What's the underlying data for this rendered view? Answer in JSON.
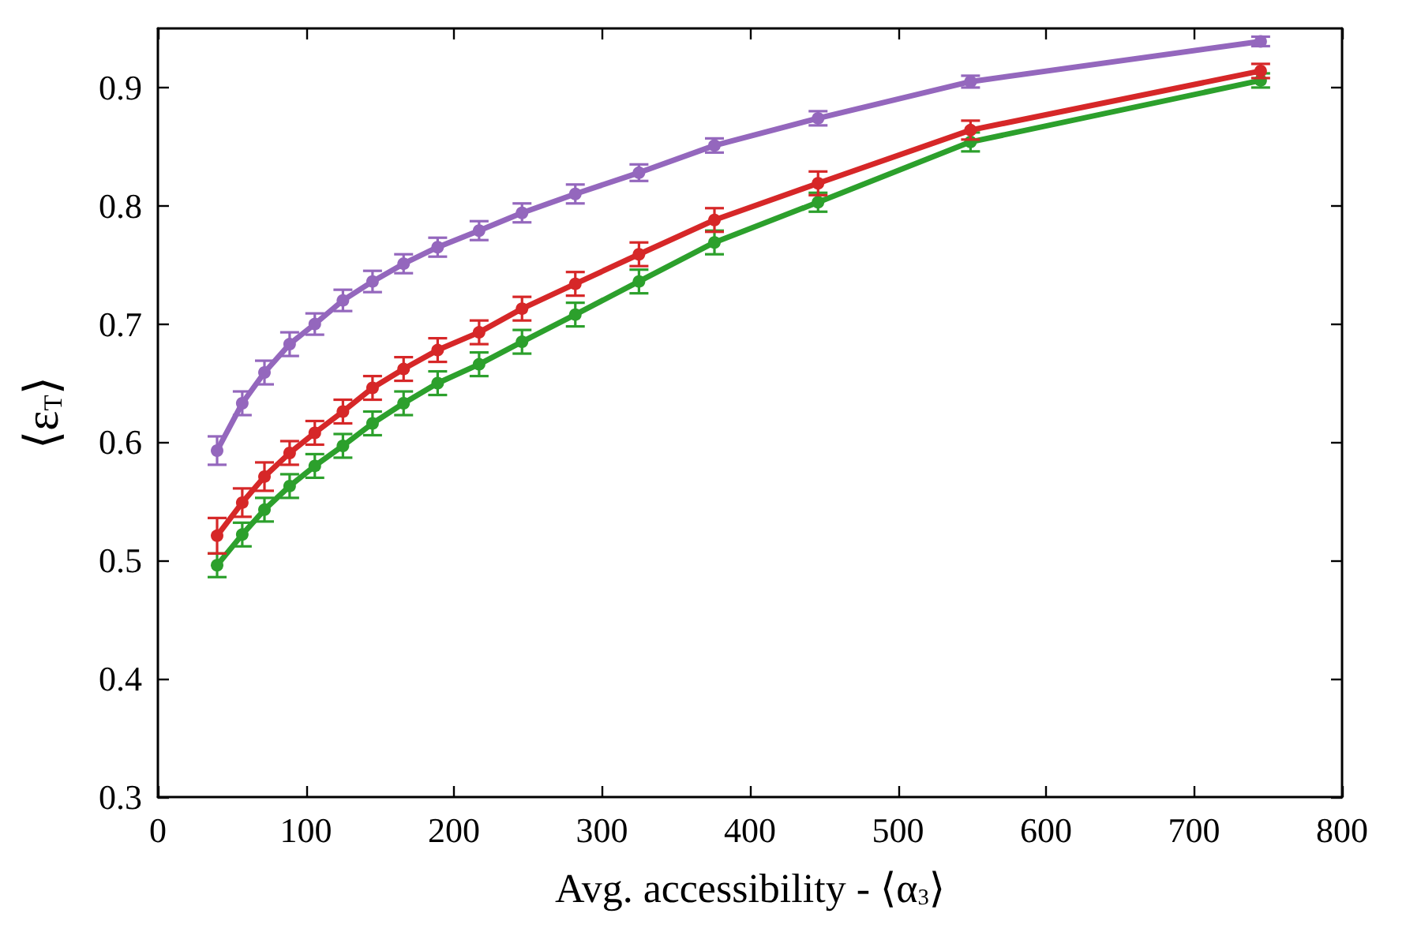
{
  "chart_data": {
    "type": "line",
    "xlabel": "Avg. accessibility - ⟨α$_{3}$⟩",
    "ylabel": "⟨ε$_{T}$⟩",
    "xlim": [
      0,
      800
    ],
    "ylim": [
      0.3,
      0.95
    ],
    "xticks": [
      0,
      100,
      200,
      300,
      400,
      500,
      600,
      700,
      800
    ],
    "yticks": [
      0.3,
      0.4,
      0.5,
      0.6,
      0.7,
      0.8,
      0.9
    ],
    "grid": false,
    "marker": "circle",
    "line_style": "solid",
    "x": [
      40,
      57,
      72,
      89,
      106,
      125,
      145,
      166,
      189,
      217,
      246,
      282,
      325,
      376,
      446,
      549,
      745
    ],
    "series": [
      {
        "color": "#2ca02c",
        "values": [
          0.496,
          0.522,
          0.543,
          0.563,
          0.58,
          0.597,
          0.616,
          0.633,
          0.65,
          0.666,
          0.685,
          0.708,
          0.736,
          0.769,
          0.803,
          0.854,
          0.906
        ],
        "errors": [
          0.01,
          0.01,
          0.01,
          0.01,
          0.01,
          0.01,
          0.01,
          0.01,
          0.01,
          0.01,
          0.01,
          0.01,
          0.01,
          0.01,
          0.008,
          0.008,
          0.006
        ]
      },
      {
        "color": "#d62728",
        "values": [
          0.521,
          0.549,
          0.571,
          0.591,
          0.608,
          0.626,
          0.646,
          0.662,
          0.678,
          0.693,
          0.713,
          0.734,
          0.759,
          0.788,
          0.819,
          0.864,
          0.914
        ],
        "errors": [
          0.015,
          0.012,
          0.012,
          0.01,
          0.01,
          0.01,
          0.01,
          0.01,
          0.01,
          0.01,
          0.01,
          0.01,
          0.01,
          0.01,
          0.01,
          0.008,
          0.006
        ]
      },
      {
        "color": "#9467bd",
        "values": [
          0.593,
          0.633,
          0.659,
          0.683,
          0.7,
          0.72,
          0.736,
          0.751,
          0.765,
          0.779,
          0.794,
          0.81,
          0.828,
          0.851,
          0.874,
          0.905,
          0.939
        ],
        "errors": [
          0.012,
          0.01,
          0.01,
          0.01,
          0.009,
          0.009,
          0.009,
          0.008,
          0.008,
          0.008,
          0.008,
          0.008,
          0.007,
          0.006,
          0.006,
          0.005,
          0.004
        ]
      }
    ]
  }
}
